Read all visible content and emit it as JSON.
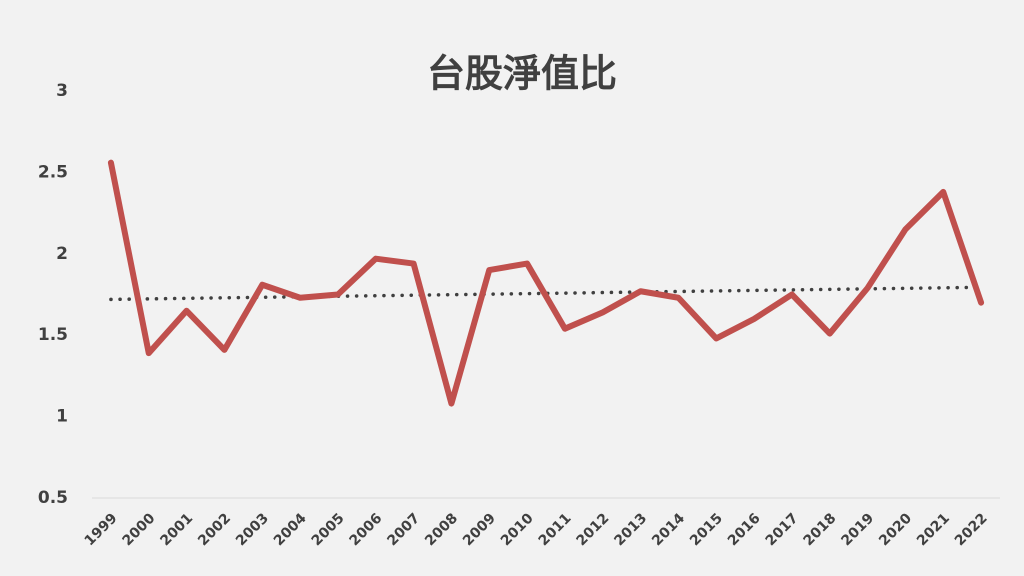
{
  "chart_data": {
    "type": "line",
    "title": "台股淨值比",
    "categories": [
      "1999",
      "2000",
      "2001",
      "2002",
      "2003",
      "2004",
      "2005",
      "2006",
      "2007",
      "2008",
      "2009",
      "2010",
      "2011",
      "2012",
      "2013",
      "2014",
      "2015",
      "2016",
      "2017",
      "2018",
      "2019",
      "2020",
      "2021",
      "2022"
    ],
    "values": [
      2.56,
      1.39,
      1.65,
      1.41,
      1.81,
      1.73,
      1.75,
      1.97,
      1.94,
      1.08,
      1.9,
      1.94,
      1.54,
      1.64,
      1.77,
      1.73,
      1.48,
      1.6,
      1.75,
      1.51,
      1.79,
      2.15,
      2.38,
      1.7
    ],
    "color": "#c0504d",
    "trendline": "linear",
    "trendline_color": "#404040",
    "ylim": [
      0.5,
      3
    ],
    "yticks": [
      0.5,
      1,
      1.5,
      2,
      2.5,
      3
    ],
    "grid": false
  }
}
